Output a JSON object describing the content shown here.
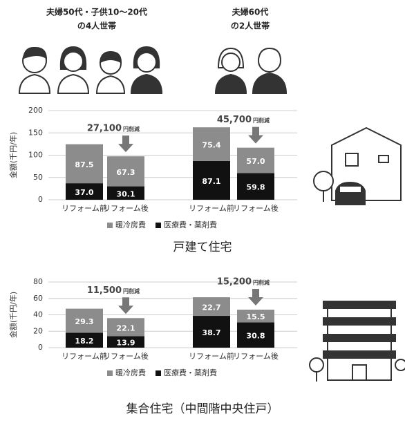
{
  "households": [
    {
      "lines": [
        "夫婦50代・子供10〜20代",
        "の4人世帯"
      ]
    },
    {
      "lines": [
        "夫婦60代",
        "の2人世帯"
      ]
    }
  ],
  "chart_data": [
    {
      "type": "stacked_bar",
      "title": "戸建て住宅",
      "ylabel": "金額(千円/年)",
      "categories": [
        "リフォーム前",
        "リフォーム後",
        "リフォーム前",
        "リフォーム後"
      ],
      "series": [
        {
          "name": "暖冷房費",
          "color": "#8c8c8c",
          "values": [
            87.5,
            67.3,
            75.4,
            57.0
          ],
          "value_labels": [
            "87.5",
            "67.3",
            "75.4",
            "57.0"
          ]
        },
        {
          "name": "医療費・薬剤費",
          "color": "#111111",
          "values": [
            37.0,
            30.1,
            87.1,
            59.8
          ],
          "value_labels": [
            "37.0",
            "30.1",
            "87.1",
            "59.8"
          ]
        }
      ],
      "ylim": [
        0,
        200
      ],
      "yticks": [
        0,
        50,
        100,
        150,
        200
      ],
      "grid": true,
      "annotations": [
        {
          "category": 1,
          "text": "27,100",
          "suffix": "円削減"
        },
        {
          "category": 3,
          "text": "45,700",
          "suffix": "円削減"
        }
      ]
    },
    {
      "type": "stacked_bar",
      "title": "集合住宅（中間階中央住戸）",
      "ylabel": "金額(千円/年)",
      "categories": [
        "リフォーム前",
        "リフォーム後",
        "リフォーム前",
        "リフォーム後"
      ],
      "series": [
        {
          "name": "暖冷房費",
          "color": "#8c8c8c",
          "values": [
            29.3,
            22.1,
            22.7,
            15.5
          ],
          "value_labels": [
            "29.3",
            "22.1",
            "22.7",
            "15.5"
          ]
        },
        {
          "name": "医療費・薬剤費",
          "color": "#111111",
          "values": [
            18.2,
            13.9,
            38.7,
            30.8
          ],
          "value_labels": [
            "18.2",
            "13.9",
            "38.7",
            "30.8"
          ]
        }
      ],
      "ylim": [
        0,
        80
      ],
      "yticks": [
        0,
        20,
        40,
        60,
        80
      ],
      "grid": true,
      "annotations": [
        {
          "category": 1,
          "text": "11,500",
          "suffix": "円削減"
        },
        {
          "category": 3,
          "text": "15,200",
          "suffix": "円削減"
        }
      ]
    }
  ]
}
